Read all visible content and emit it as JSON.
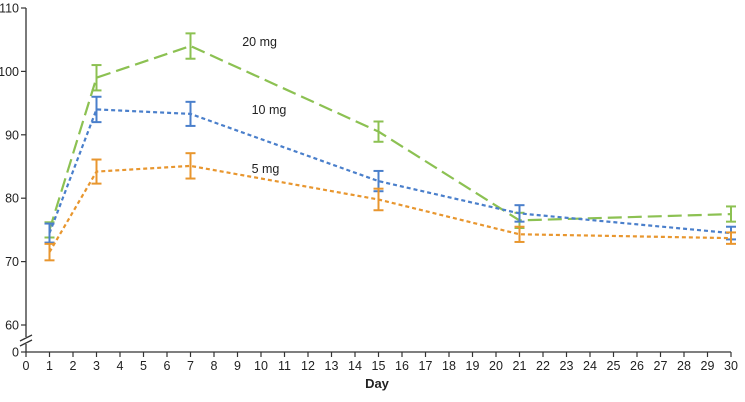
{
  "chart_data": {
    "type": "line",
    "xlabel": "Day",
    "ylabel": "",
    "xlim": [
      0,
      30
    ],
    "ylim_main": [
      60,
      110
    ],
    "y_axis_break": true,
    "y_break_baseline": 0,
    "x_ticks": [
      0,
      1,
      2,
      3,
      4,
      5,
      6,
      7,
      8,
      9,
      10,
      11,
      12,
      13,
      14,
      15,
      16,
      17,
      18,
      19,
      20,
      21,
      22,
      23,
      24,
      25,
      26,
      27,
      28,
      29,
      30
    ],
    "y_ticks": [
      0,
      60,
      70,
      80,
      90,
      100,
      110
    ],
    "series": [
      {
        "name": "20 mg",
        "color": "#8cc152",
        "dash": "long-dash",
        "x": [
          1,
          3,
          7,
          15,
          21,
          30
        ],
        "values": [
          75.0,
          99.0,
          104.0,
          90.5,
          76.5,
          77.5
        ],
        "error": [
          1.2,
          2.0,
          2.0,
          1.6,
          1.2,
          1.2
        ],
        "label": "20 mg",
        "label_at": [
          9.2,
          104.0
        ]
      },
      {
        "name": "10 mg",
        "color": "#4a7fcb",
        "dash": "short-dash",
        "x": [
          1,
          3,
          7,
          15,
          21,
          30
        ],
        "values": [
          74.5,
          94.0,
          93.3,
          82.7,
          77.6,
          74.5
        ],
        "error": [
          1.5,
          2.0,
          1.9,
          1.6,
          1.3,
          1.0
        ],
        "label": "10 mg",
        "label_at": [
          9.6,
          93.3
        ]
      },
      {
        "name": "5 mg",
        "color": "#e8962e",
        "dash": "short-dash",
        "x": [
          1,
          3,
          7,
          15,
          21,
          30
        ],
        "values": [
          71.5,
          84.2,
          85.1,
          79.8,
          74.3,
          73.7
        ],
        "error": [
          1.3,
          1.9,
          2.0,
          1.7,
          1.2,
          0.9
        ],
        "label": "5 mg",
        "label_at": [
          9.6,
          84.0
        ]
      }
    ]
  }
}
